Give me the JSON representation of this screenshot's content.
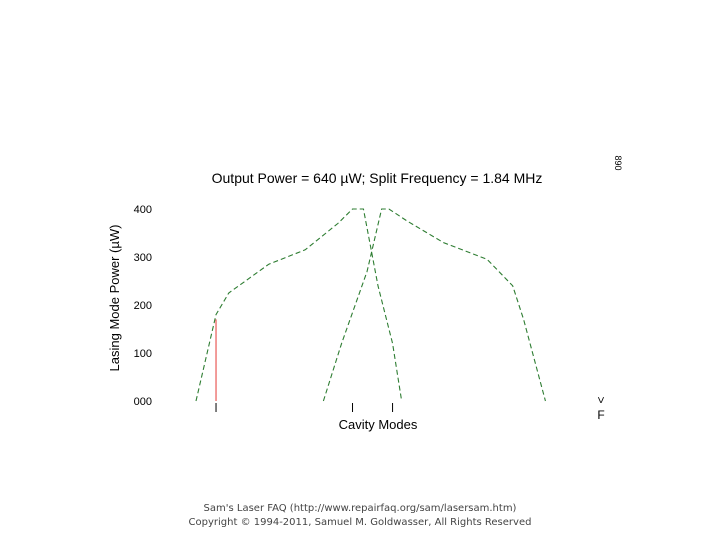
{
  "chart_data": {
    "type": "line",
    "title": "Output Power = 640 µW; Split Frequency = 1.84 MHz",
    "xlabel": "Cavity Modes",
    "ylabel": "Lasing Mode Power (µW)",
    "ylim": [
      0,
      420
    ],
    "yticks": [
      0,
      100,
      200,
      300,
      400
    ],
    "ytick_labels": [
      "000",
      "100",
      "200",
      "300",
      "400"
    ],
    "xlim": [
      0,
      100
    ],
    "grid": false,
    "series": [
      {
        "color": "#2e7d32",
        "style": "dashed",
        "x": [
          0,
          5.5,
          9,
          20,
          30,
          39,
          43,
          46,
          50,
          54,
          56.5
        ],
        "y": [
          0,
          180,
          225,
          285,
          315,
          370,
          400,
          400,
          240,
          120,
          0
        ]
      },
      {
        "color": "#2e7d32",
        "style": "dashed",
        "x": [
          35,
          40,
          47,
          51,
          53,
          58,
          68,
          80,
          87,
          90,
          96
        ],
        "y": [
          0,
          120,
          270,
          400,
          400,
          375,
          330,
          295,
          240,
          170,
          0
        ]
      }
    ],
    "markers": [
      {
        "x": 5.5,
        "y": 170,
        "color": "#e53935"
      }
    ],
    "x_ticks": [
      5.5,
      43,
      54
    ]
  },
  "corner_label": "890",
  "vf_label_top": ">",
  "vf_label_bottom": "F",
  "footer": {
    "line1": "Sam's Laser FAQ (http://www.repairfaq.org/sam/lasersam.htm)",
    "line2": "Copyright © 1994-2011, Samuel M. Goldwasser, All Rights Reserved"
  }
}
